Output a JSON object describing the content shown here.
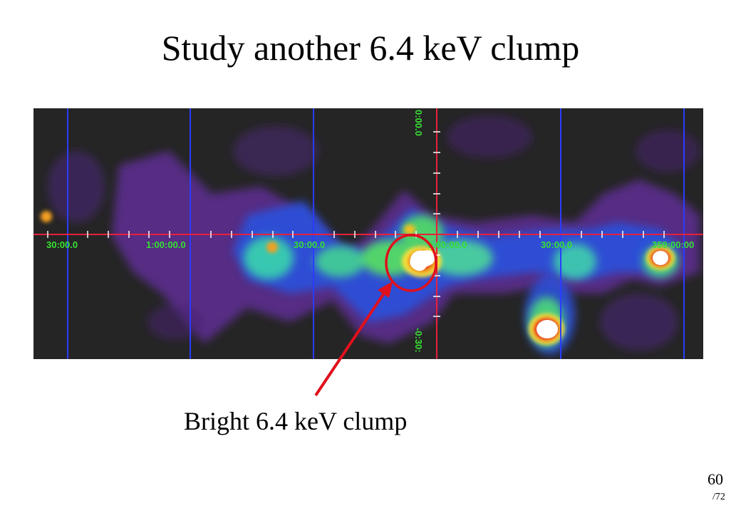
{
  "slide": {
    "title": "Study another 6.4 keV clump",
    "callout": "Bright 6.4 keV clump",
    "page_number": "60",
    "page_total": "/72"
  },
  "map": {
    "lon_labels": [
      "30:00.0",
      "1:00:00.0",
      "30:00.0",
      "0:00:00.0",
      "30:00.0",
      "359:00:00"
    ],
    "lat_labels": [
      "0:00.0",
      "-0:30:"
    ],
    "colors": {
      "background": "#252525",
      "grid_blue": "#2a3cff",
      "plane_red": "#e8203a",
      "label_green": "#37e233",
      "marker_red": "#e0101c"
    }
  }
}
